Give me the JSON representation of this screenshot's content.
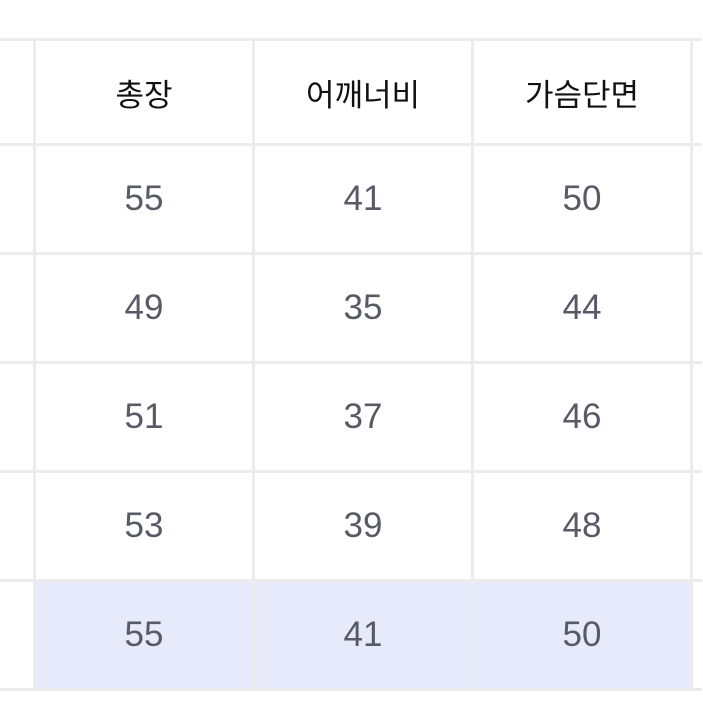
{
  "table": {
    "headers": [
      "",
      "총장",
      "어깨너비",
      "가슴단면",
      ""
    ],
    "rows": [
      [
        "",
        "55",
        "41",
        "50",
        ""
      ],
      [
        "",
        "49",
        "35",
        "44",
        ""
      ],
      [
        "",
        "51",
        "37",
        "46",
        ""
      ],
      [
        "",
        "53",
        "39",
        "48",
        ""
      ],
      [
        "",
        "55",
        "41",
        "50",
        ""
      ]
    ],
    "highlighted_row": 4,
    "highlight_color": "#e6eafb",
    "border_color": "#ececec"
  }
}
